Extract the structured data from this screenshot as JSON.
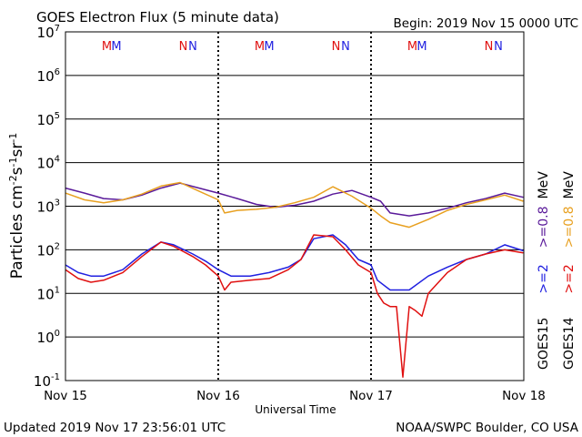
{
  "header": {
    "title": "GOES Electron Flux (5 minute data)",
    "begin": "Begin: 2019 Nov 15 0000 UTC"
  },
  "footer": {
    "updated": "Updated 2019 Nov 17 23:56:01 UTC",
    "source": "NOAA/SWPC Boulder, CO USA"
  },
  "legend": {
    "goes15": "GOES15",
    "goes14": "GOES14",
    "goes15_e2": ">=2",
    "goes15_e08": ">=0.8",
    "goes14_e2": ">=2",
    "goes14_e08": ">=0.8",
    "mev_a": "MeV",
    "mev_b": "MeV"
  },
  "colors": {
    "goes15_e2": "#2020e0",
    "goes14_e2": "#e01010",
    "goes15_e08": "#5a1a9a",
    "goes14_e08": "#e8a020",
    "threshold": "#000000"
  },
  "chart_data": {
    "type": "line",
    "title": "GOES Electron Flux (5 minute data)",
    "xlabel": "Universal Time",
    "ylabel": "Particles cm-2s-1sr-1",
    "y_scale": "log",
    "ylim": [
      0.1,
      10000000
    ],
    "xlim": [
      "2019-11-15 00:00",
      "2019-11-18 00:00"
    ],
    "x_ticks": [
      "Nov 15",
      "Nov 16",
      "Nov 17",
      "Nov 18"
    ],
    "y_ticks": [
      {
        "base": "10",
        "exp": "7"
      },
      {
        "base": "10",
        "exp": "6"
      },
      {
        "base": "10",
        "exp": "5"
      },
      {
        "base": "10",
        "exp": "4"
      },
      {
        "base": "10",
        "exp": "3"
      },
      {
        "base": "10",
        "exp": "2"
      },
      {
        "base": "10",
        "exp": "1"
      },
      {
        "base": "10",
        "exp": "0"
      },
      {
        "base": "10",
        "exp": "-1"
      }
    ],
    "threshold": 1000,
    "time_markers": [
      {
        "label": "M",
        "t": "2019-11-15 06:30",
        "series": "goes14"
      },
      {
        "label": "M",
        "t": "2019-11-15 08:00",
        "series": "goes15"
      },
      {
        "label": "N",
        "t": "2019-11-15 18:30",
        "series": "goes14"
      },
      {
        "label": "N",
        "t": "2019-11-15 20:00",
        "series": "goes15"
      },
      {
        "label": "M",
        "t": "2019-11-16 06:30",
        "series": "goes14"
      },
      {
        "label": "M",
        "t": "2019-11-16 08:00",
        "series": "goes15"
      },
      {
        "label": "N",
        "t": "2019-11-16 18:30",
        "series": "goes14"
      },
      {
        "label": "N",
        "t": "2019-11-16 20:00",
        "series": "goes15"
      },
      {
        "label": "M",
        "t": "2019-11-17 06:30",
        "series": "goes14"
      },
      {
        "label": "M",
        "t": "2019-11-17 08:00",
        "series": "goes15"
      },
      {
        "label": "N",
        "t": "2019-11-17 18:30",
        "series": "goes14"
      },
      {
        "label": "N",
        "t": "2019-11-17 20:00",
        "series": "goes15"
      }
    ],
    "series": [
      {
        "name": "GOES15 >=0.8 MeV",
        "color_key": "goes15_e08",
        "x": [
          "2019-11-15 00:00",
          "2019-11-15 03:00",
          "2019-11-15 06:00",
          "2019-11-15 09:00",
          "2019-11-15 12:00",
          "2019-11-15 15:00",
          "2019-11-15 18:00",
          "2019-11-15 21:00",
          "2019-11-16 00:00",
          "2019-11-16 03:00",
          "2019-11-16 06:00",
          "2019-11-16 09:00",
          "2019-11-16 12:00",
          "2019-11-16 15:00",
          "2019-11-16 18:00",
          "2019-11-16 21:00",
          "2019-11-17 00:00",
          "2019-11-17 01:30",
          "2019-11-17 03:00",
          "2019-11-17 06:00",
          "2019-11-17 09:00",
          "2019-11-17 12:00",
          "2019-11-17 15:00",
          "2019-11-17 18:00",
          "2019-11-17 21:00",
          "2019-11-17 23:55"
        ],
        "y": [
          2600,
          2000,
          1500,
          1400,
          1800,
          2600,
          3400,
          2600,
          2000,
          1500,
          1100,
          950,
          1050,
          1300,
          1900,
          2300,
          1600,
          1300,
          700,
          600,
          700,
          900,
          1200,
          1500,
          2000,
          1600
        ]
      },
      {
        "name": "GOES14 >=0.8 MeV",
        "color_key": "goes14_e08",
        "x": [
          "2019-11-15 00:00",
          "2019-11-15 03:00",
          "2019-11-15 06:00",
          "2019-11-15 09:00",
          "2019-11-15 12:00",
          "2019-11-15 15:00",
          "2019-11-15 18:00",
          "2019-11-15 21:00",
          "2019-11-16 00:00",
          "2019-11-16 01:00",
          "2019-11-16 03:00",
          "2019-11-16 06:00",
          "2019-11-16 09:00",
          "2019-11-16 12:00",
          "2019-11-16 15:00",
          "2019-11-16 18:00",
          "2019-11-16 21:00",
          "2019-11-17 00:00",
          "2019-11-17 01:30",
          "2019-11-17 03:00",
          "2019-11-17 06:00",
          "2019-11-17 09:00",
          "2019-11-17 12:00",
          "2019-11-17 15:00",
          "2019-11-17 18:00",
          "2019-11-17 21:00",
          "2019-11-17 23:55"
        ],
        "y": [
          2000,
          1400,
          1200,
          1400,
          1900,
          2900,
          3500,
          2200,
          1400,
          700,
          800,
          850,
          950,
          1200,
          1600,
          2800,
          1700,
          900,
          600,
          420,
          330,
          500,
          800,
          1100,
          1400,
          1800,
          1300
        ]
      },
      {
        "name": "GOES15 >=2 MeV",
        "color_key": "goes15_e2",
        "x": [
          "2019-11-15 00:00",
          "2019-11-15 02:00",
          "2019-11-15 04:00",
          "2019-11-15 06:00",
          "2019-11-15 09:00",
          "2019-11-15 12:00",
          "2019-11-15 15:00",
          "2019-11-15 17:00",
          "2019-11-15 20:00",
          "2019-11-15 22:00",
          "2019-11-16 00:00",
          "2019-11-16 02:00",
          "2019-11-16 05:00",
          "2019-11-16 08:00",
          "2019-11-16 11:00",
          "2019-11-16 13:00",
          "2019-11-16 15:00",
          "2019-11-16 18:00",
          "2019-11-16 20:00",
          "2019-11-16 22:00",
          "2019-11-17 00:00",
          "2019-11-17 01:00",
          "2019-11-17 03:00",
          "2019-11-17 06:00",
          "2019-11-17 09:00",
          "2019-11-17 12:00",
          "2019-11-17 15:00",
          "2019-11-17 18:00",
          "2019-11-17 21:00",
          "2019-11-17 23:55"
        ],
        "y": [
          45,
          30,
          25,
          25,
          35,
          80,
          150,
          130,
          80,
          55,
          35,
          25,
          25,
          30,
          40,
          60,
          180,
          220,
          130,
          60,
          45,
          20,
          12,
          12,
          25,
          40,
          60,
          80,
          130,
          95
        ]
      },
      {
        "name": "GOES14 >=2 MeV",
        "color_key": "goes14_e2",
        "x": [
          "2019-11-15 00:00",
          "2019-11-15 02:00",
          "2019-11-15 04:00",
          "2019-11-15 06:00",
          "2019-11-15 09:00",
          "2019-11-15 12:00",
          "2019-11-15 15:00",
          "2019-11-15 17:00",
          "2019-11-15 20:00",
          "2019-11-15 22:00",
          "2019-11-16 00:00",
          "2019-11-16 01:00",
          "2019-11-16 02:00",
          "2019-11-16 05:00",
          "2019-11-16 08:00",
          "2019-11-16 11:00",
          "2019-11-16 13:00",
          "2019-11-16 15:00",
          "2019-11-16 18:00",
          "2019-11-16 20:00",
          "2019-11-16 22:00",
          "2019-11-17 00:00",
          "2019-11-17 01:00",
          "2019-11-17 02:00",
          "2019-11-17 03:00",
          "2019-11-17 04:00",
          "2019-11-17 05:00",
          "2019-11-17 06:00",
          "2019-11-17 07:00",
          "2019-11-17 08:00",
          "2019-11-17 09:00",
          "2019-11-17 12:00",
          "2019-11-17 15:00",
          "2019-11-17 18:00",
          "2019-11-17 21:00",
          "2019-11-17 23:55"
        ],
        "y": [
          35,
          22,
          18,
          20,
          30,
          70,
          150,
          120,
          70,
          45,
          25,
          12,
          18,
          20,
          22,
          35,
          60,
          220,
          200,
          100,
          45,
          30,
          10,
          6,
          5,
          5,
          0.12,
          5,
          4,
          3,
          10,
          30,
          60,
          80,
          100,
          85
        ]
      }
    ]
  }
}
